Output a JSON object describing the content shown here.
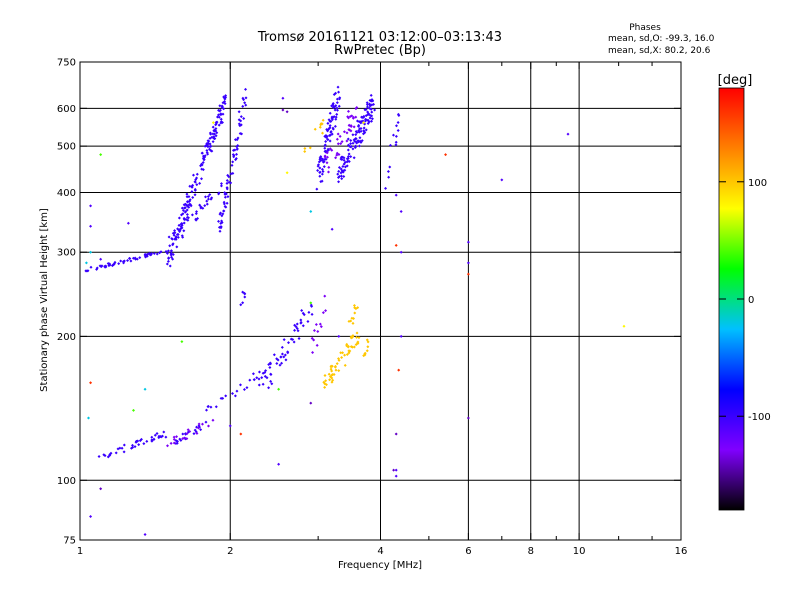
{
  "chart_data": {
    "type": "scatter",
    "title": "Tromsø 20161121 03:12:00–03:13:43",
    "subtitle": "RwPretec (Bp)",
    "xlabel": "Frequency [MHz]",
    "ylabel": "Stationary phase Virtual Height [km]",
    "x_scale": "log",
    "y_scale": "log",
    "xlim": [
      1,
      16
    ],
    "ylim": [
      75,
      750
    ],
    "x_ticks": [
      1,
      2,
      4,
      6,
      8,
      10,
      16
    ],
    "x_minor_ticks": [
      3,
      5,
      7,
      9,
      12,
      14
    ],
    "y_ticks": [
      75,
      100,
      200,
      300,
      400,
      500,
      600,
      750
    ],
    "x_grid_lines": [
      2,
      4,
      6,
      8,
      10
    ],
    "y_grid_lines": [
      100,
      200,
      300,
      400,
      500,
      600
    ],
    "grid": true,
    "stats": {
      "heading": "Phases",
      "line1": "mean, sd,O: -99.3, 16.0",
      "line2": "mean, sd,X:  80.2, 20.6"
    },
    "colorbar": {
      "label": "[deg]",
      "min": -180,
      "max": 180,
      "ticks": [
        100,
        0,
        -100
      ],
      "colormap": [
        "#000000",
        "#8000ff",
        "#0000ff",
        "#00c0ff",
        "#00ff00",
        "#ffff00",
        "#ff8000",
        "#ff0000"
      ]
    },
    "series": [
      {
        "phase": -100,
        "segments": [
          {
            "f1": 1.03,
            "f2": 1.45,
            "h1": 275,
            "h2": 300,
            "n": 55,
            "jit": 0.008
          },
          {
            "f1": 1.5,
            "f2": 1.95,
            "h1": 290,
            "h2": 620,
            "n": 170,
            "jit": 0.045
          },
          {
            "f1": 1.5,
            "f2": 1.95,
            "h1": 310,
            "h2": 420,
            "n": 40,
            "jit": 0.03
          },
          {
            "f1": 1.9,
            "f2": 2.15,
            "h1": 330,
            "h2": 640,
            "n": 70,
            "jit": 0.05
          },
          {
            "f1": 1.1,
            "f2": 1.5,
            "h1": 112,
            "h2": 125,
            "n": 40,
            "jit": 0.02
          },
          {
            "f1": 1.55,
            "f2": 1.8,
            "h1": 120,
            "h2": 132,
            "n": 20,
            "jit": 0.015
          },
          {
            "f1": 1.8,
            "f2": 2.35,
            "h1": 140,
            "h2": 170,
            "n": 22,
            "jit": 0.02
          },
          {
            "f1": 2.3,
            "f2": 2.9,
            "h1": 155,
            "h2": 230,
            "n": 55,
            "jit": 0.05
          },
          {
            "f1": 2.1,
            "f2": 2.2,
            "h1": 230,
            "h2": 270,
            "n": 6,
            "jit": 0.02
          },
          {
            "f1": 3.0,
            "f2": 3.3,
            "h1": 430,
            "h2": 640,
            "n": 90,
            "jit": 0.06
          },
          {
            "f1": 3.3,
            "f2": 3.9,
            "h1": 440,
            "h2": 620,
            "n": 130,
            "jit": 0.06
          },
          {
            "f1": 4.1,
            "f2": 4.4,
            "h1": 420,
            "h2": 600,
            "n": 14,
            "jit": 0.05
          }
        ]
      },
      {
        "phase": -130,
        "segments": [
          {
            "f1": 1.5,
            "f2": 1.85,
            "h1": 120,
            "h2": 132,
            "n": 18,
            "jit": 0.02
          },
          {
            "f1": 2.9,
            "f2": 3.1,
            "h1": 180,
            "h2": 240,
            "n": 12,
            "jit": 0.04
          },
          {
            "f1": 3.1,
            "f2": 3.6,
            "h1": 450,
            "h2": 600,
            "n": 40,
            "jit": 0.05
          }
        ]
      },
      {
        "phase": 100,
        "segments": [
          {
            "f1": 3.05,
            "f2": 3.6,
            "h1": 155,
            "h2": 200,
            "n": 55,
            "jit": 0.04
          },
          {
            "f1": 3.4,
            "f2": 3.6,
            "h1": 200,
            "h2": 230,
            "n": 10,
            "jit": 0.03
          },
          {
            "f1": 3.7,
            "f2": 3.8,
            "h1": 180,
            "h2": 195,
            "n": 8,
            "jit": 0.02
          },
          {
            "f1": 2.8,
            "f2": 3.1,
            "h1": 480,
            "h2": 560,
            "n": 10,
            "jit": 0.04
          }
        ]
      },
      {
        "phase": -20,
        "points": [
          [
            1.03,
            285
          ],
          [
            1.05,
            300
          ],
          [
            2.9,
            365
          ],
          [
            1.35,
            155
          ],
          [
            1.04,
            135
          ]
        ]
      },
      {
        "phase": 40,
        "points": [
          [
            1.1,
            480
          ],
          [
            1.28,
            140
          ],
          [
            1.6,
            195
          ],
          [
            2.9,
            235
          ],
          [
            2.5,
            155
          ]
        ]
      },
      {
        "phase": 160,
        "points": [
          [
            4.3,
            310
          ],
          [
            4.35,
            170
          ],
          [
            2.1,
            125
          ],
          [
            1.05,
            160
          ],
          [
            5.4,
            480
          ],
          [
            6.0,
            270
          ]
        ]
      },
      {
        "phase": -110,
        "points": [
          [
            9.5,
            530
          ],
          [
            7.0,
            425
          ],
          [
            6.0,
            315
          ],
          [
            6.0,
            285
          ],
          [
            4.3,
            395
          ],
          [
            4.4,
            365
          ],
          [
            4.4,
            300
          ],
          [
            4.4,
            200
          ],
          [
            4.3,
            105
          ],
          [
            4.3,
            102
          ],
          [
            1.05,
            375
          ],
          [
            1.05,
            340
          ],
          [
            1.1,
            290
          ],
          [
            1.25,
            345
          ],
          [
            2.0,
            130
          ],
          [
            2.5,
            108
          ],
          [
            2.55,
            630
          ],
          [
            3.2,
            335
          ],
          [
            3.3,
            200
          ],
          [
            1.05,
            84
          ],
          [
            1.35,
            77
          ]
        ]
      },
      {
        "phase": -140,
        "points": [
          [
            6.0,
            135
          ],
          [
            4.3,
            125
          ],
          [
            4.25,
            105
          ],
          [
            2.9,
            145
          ],
          [
            2.55,
            595
          ],
          [
            2.6,
            590
          ],
          [
            1.1,
            96
          ]
        ]
      },
      {
        "phase": 80,
        "points": [
          [
            12.3,
            210
          ],
          [
            3.7,
            560
          ],
          [
            2.6,
            440
          ],
          [
            1.85,
            560
          ]
        ]
      }
    ]
  }
}
